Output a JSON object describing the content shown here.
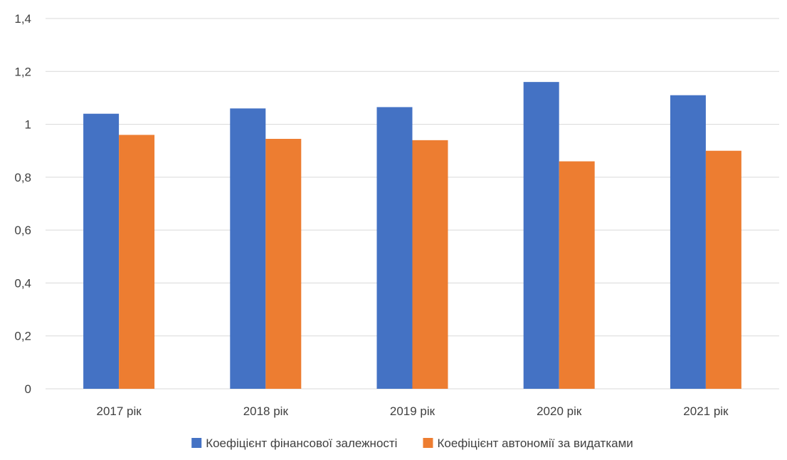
{
  "chart_data": {
    "type": "bar",
    "categories": [
      "2017 рік",
      "2018 рік",
      "2019 рік",
      "2020 рік",
      "2021 рік"
    ],
    "series": [
      {
        "name": "Коефіцієнт фінансової залежності",
        "values": [
          1.04,
          1.06,
          1.065,
          1.16,
          1.11
        ],
        "color": "#4472c4"
      },
      {
        "name": "Коефіцієнт автономії за видатками",
        "values": [
          0.96,
          0.945,
          0.94,
          0.86,
          0.9
        ],
        "color": "#ed7d31"
      }
    ],
    "y_ticks": [
      "0",
      "0,2",
      "0,4",
      "0,6",
      "0,8",
      "1",
      "1,2",
      "1,4"
    ],
    "ylim": [
      0,
      1.4
    ],
    "grid": true,
    "legend_position": "bottom"
  }
}
